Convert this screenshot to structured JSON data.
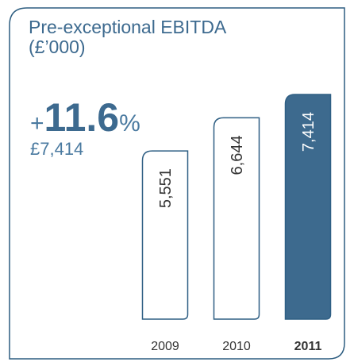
{
  "chart_data": {
    "type": "bar",
    "title": "Pre-exceptional EBITDA (£’000)",
    "highlight_prefix": "+",
    "highlight_value": "11.6",
    "highlight_suffix": "%",
    "highlight_subtext": "£7,414",
    "categories": [
      "2009",
      "2010",
      "2011"
    ],
    "values": [
      5551,
      6644,
      7414
    ],
    "value_labels": [
      "5,551",
      "6,644",
      "7,414"
    ],
    "color": "#2f5f84",
    "highlight_color": "#3d6a8e",
    "highlighted_index": 2
  }
}
